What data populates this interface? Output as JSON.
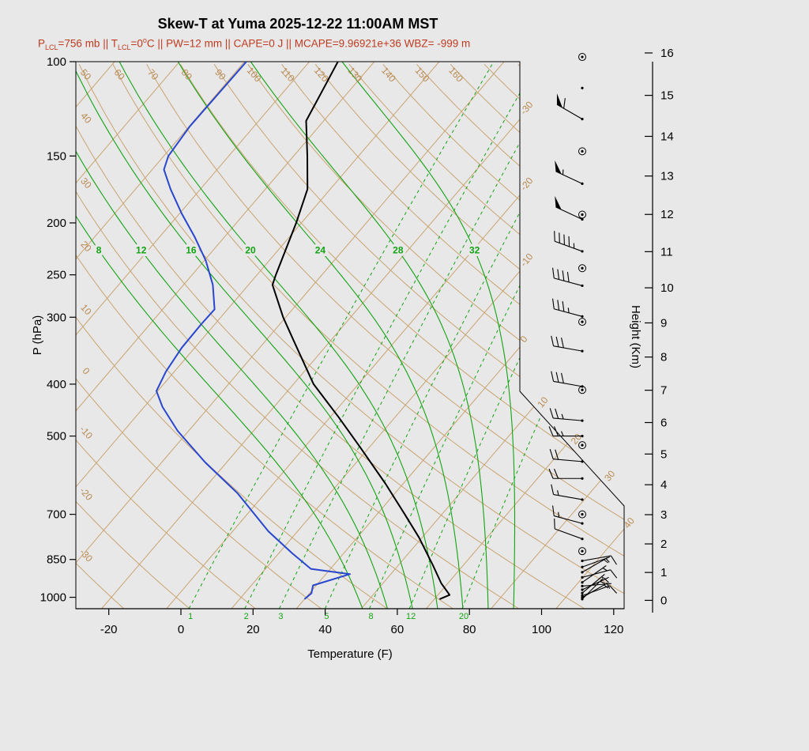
{
  "title": "Skew-T at Yuma 2025-12-22 11:00AM MST",
  "subtitle": {
    "color": "#c03a20",
    "parts": [
      {
        "text": "P"
      },
      {
        "sub": "LCL"
      },
      {
        "text": "=756 mb || T"
      },
      {
        "sub": "LCL"
      },
      {
        "text": "=0"
      },
      {
        "sup": "o"
      },
      {
        "text": "C || PW=12 mm || CAPE=0 J || MCAPE=9.96921e+36 WBZ= -999 m"
      }
    ]
  },
  "chart_data": {
    "type": "skewt-log-p",
    "station": "Yuma",
    "datetime": "2025-12-22 11:00AM MST",
    "derived": {
      "p_lcl": "756 mb",
      "t_lcl": "0 C",
      "pw": "12 mm",
      "cape": "0 J",
      "mcape": "9.96921e+36",
      "wbz": "-999 m"
    },
    "axes": {
      "pressure": {
        "label": "P (hPa)",
        "ticks": [
          100,
          150,
          200,
          250,
          300,
          400,
          500,
          700,
          850,
          1000
        ],
        "range": [
          100,
          1050
        ]
      },
      "temperature": {
        "label": "Temperature (F)",
        "ticks": [
          -20,
          0,
          20,
          40,
          60,
          80,
          100,
          120
        ],
        "unit": "F"
      },
      "height": {
        "label": "Height (Km)",
        "ticks": [
          0,
          1,
          2,
          3,
          4,
          5,
          6,
          7,
          8,
          9,
          10,
          11,
          12,
          13,
          14,
          15,
          16
        ],
        "unit": "km"
      }
    },
    "isotherms_c": [
      -110,
      -100,
      -90,
      -80,
      -70,
      -60,
      -50,
      -40,
      -30,
      -20,
      -10,
      0,
      10,
      20,
      30,
      40
    ],
    "isotherm_labels_c": [
      -30,
      -20,
      -10,
      0,
      10,
      20,
      30,
      40
    ],
    "dry_adiabats_c": [
      -30,
      -20,
      -10,
      0,
      10,
      20,
      30,
      40,
      50,
      60,
      70,
      80,
      90,
      100,
      110,
      120,
      130,
      140,
      150,
      160,
      170,
      180
    ],
    "dry_adiabat_left_labels_c": [
      40,
      30,
      20,
      10,
      0,
      -10,
      -20,
      -30
    ],
    "dry_adiabat_top_labels_c": [
      50,
      60,
      70,
      80,
      90,
      100,
      110,
      120,
      130,
      140,
      150,
      160
    ],
    "mixing_ratio_gkg": [
      1,
      2,
      3,
      5,
      8,
      12,
      20
    ],
    "moist_adiabats_c": [
      8,
      12,
      16,
      20,
      24,
      28,
      32
    ],
    "temperature_profile": {
      "pressure_hpa": [
        1008,
        990,
        942,
        871,
        773,
        699,
        614,
        523,
        461,
        400,
        331,
        300,
        261,
        250,
        200,
        173,
        150,
        129,
        111,
        100
      ],
      "temp_c": [
        20.8,
        21.8,
        19.0,
        15.3,
        9.5,
        4.2,
        -2.7,
        -11.6,
        -18.7,
        -26.9,
        -35.8,
        -40.4,
        -46.3,
        -47.1,
        -50.8,
        -53.5,
        -57.9,
        -62.7,
        -64.4,
        -65.6
      ]
    },
    "dewpoint_profile": {
      "pressure_hpa": [
        1008,
        983,
        950,
        905,
        885,
        828,
        753,
        640,
        560,
        489,
        441,
        412,
        379,
        342,
        309,
        290,
        261,
        235,
        212,
        192,
        173,
        159,
        150,
        132,
        115,
        100
      ],
      "dewpoint_c": [
        0,
        0.3,
        -0.5,
        3.7,
        -3.0,
        -7.9,
        -14.5,
        -24.2,
        -33.3,
        -41.7,
        -47.2,
        -50.2,
        -51.3,
        -52.0,
        -52.1,
        -52.0,
        -55.5,
        -59.8,
        -64.7,
        -69.7,
        -74.6,
        -78.2,
        -79.3,
        -79.9,
        -79.8,
        -79.7
      ]
    },
    "winds": [
      {
        "p": 98,
        "type": "circle"
      },
      {
        "p": 112,
        "type": "dot"
      },
      {
        "p": 128,
        "type": "barb",
        "speed": 60,
        "dir": 300
      },
      {
        "p": 147,
        "type": "circle"
      },
      {
        "p": 169,
        "type": "barb",
        "speed": 55,
        "dir": 295
      },
      {
        "p": 193,
        "type": "circle"
      },
      {
        "p": 197,
        "type": "barb",
        "speed": 50,
        "dir": 295
      },
      {
        "p": 226,
        "type": "barb",
        "speed": 45,
        "dir": 290
      },
      {
        "p": 243,
        "type": "circle"
      },
      {
        "p": 262,
        "type": "barb",
        "speed": 40,
        "dir": 285
      },
      {
        "p": 299,
        "type": "barb",
        "speed": 35,
        "dir": 285
      },
      {
        "p": 306,
        "type": "circle"
      },
      {
        "p": 347,
        "type": "barb",
        "speed": 30,
        "dir": 280
      },
      {
        "p": 404,
        "type": "barb",
        "speed": 30,
        "dir": 280
      },
      {
        "p": 410,
        "type": "circle"
      },
      {
        "p": 468,
        "type": "barb",
        "speed": 25,
        "dir": 275
      },
      {
        "p": 500,
        "type": "barb",
        "speed": 25,
        "dir": 270
      },
      {
        "p": 520,
        "type": "circle"
      },
      {
        "p": 558,
        "type": "barb",
        "speed": 20,
        "dir": 275
      },
      {
        "p": 600,
        "type": "barb",
        "speed": 20,
        "dir": 270
      },
      {
        "p": 657,
        "type": "barb",
        "speed": 15,
        "dir": 280
      },
      {
        "p": 700,
        "type": "circle"
      },
      {
        "p": 728,
        "type": "barb",
        "speed": 15,
        "dir": 285
      },
      {
        "p": 778,
        "type": "barb",
        "speed": 10,
        "dir": 290
      },
      {
        "p": 820,
        "type": "circle"
      },
      {
        "p": 855,
        "type": "barb",
        "speed": 8,
        "dir": 80
      },
      {
        "p": 878,
        "type": "barb",
        "speed": 7,
        "dir": 70
      },
      {
        "p": 898,
        "type": "barb",
        "speed": 6,
        "dir": 60
      },
      {
        "p": 918,
        "type": "barb",
        "speed": 8,
        "dir": 75
      },
      {
        "p": 938,
        "type": "barb",
        "speed": 5,
        "dir": 55
      },
      {
        "p": 953,
        "type": "barb",
        "speed": 7,
        "dir": 85
      },
      {
        "p": 968,
        "type": "barb",
        "speed": 6,
        "dir": 65
      },
      {
        "p": 982,
        "type": "barb",
        "speed": 5,
        "dir": 50
      },
      {
        "p": 993,
        "type": "barb",
        "speed": 8,
        "dir": 70
      },
      {
        "p": 1001,
        "type": "barb",
        "speed": 5,
        "dir": 60
      },
      {
        "p": 1008,
        "type": "barb",
        "speed": 4,
        "dir": 45
      }
    ],
    "colors": {
      "tan": "#c9a471",
      "tan_text": "#b98a52",
      "green": "#12a312",
      "temperature": "#000000",
      "dewpoint": "#2946cf",
      "axis": "#000000",
      "background": "#e8e8e8"
    }
  }
}
